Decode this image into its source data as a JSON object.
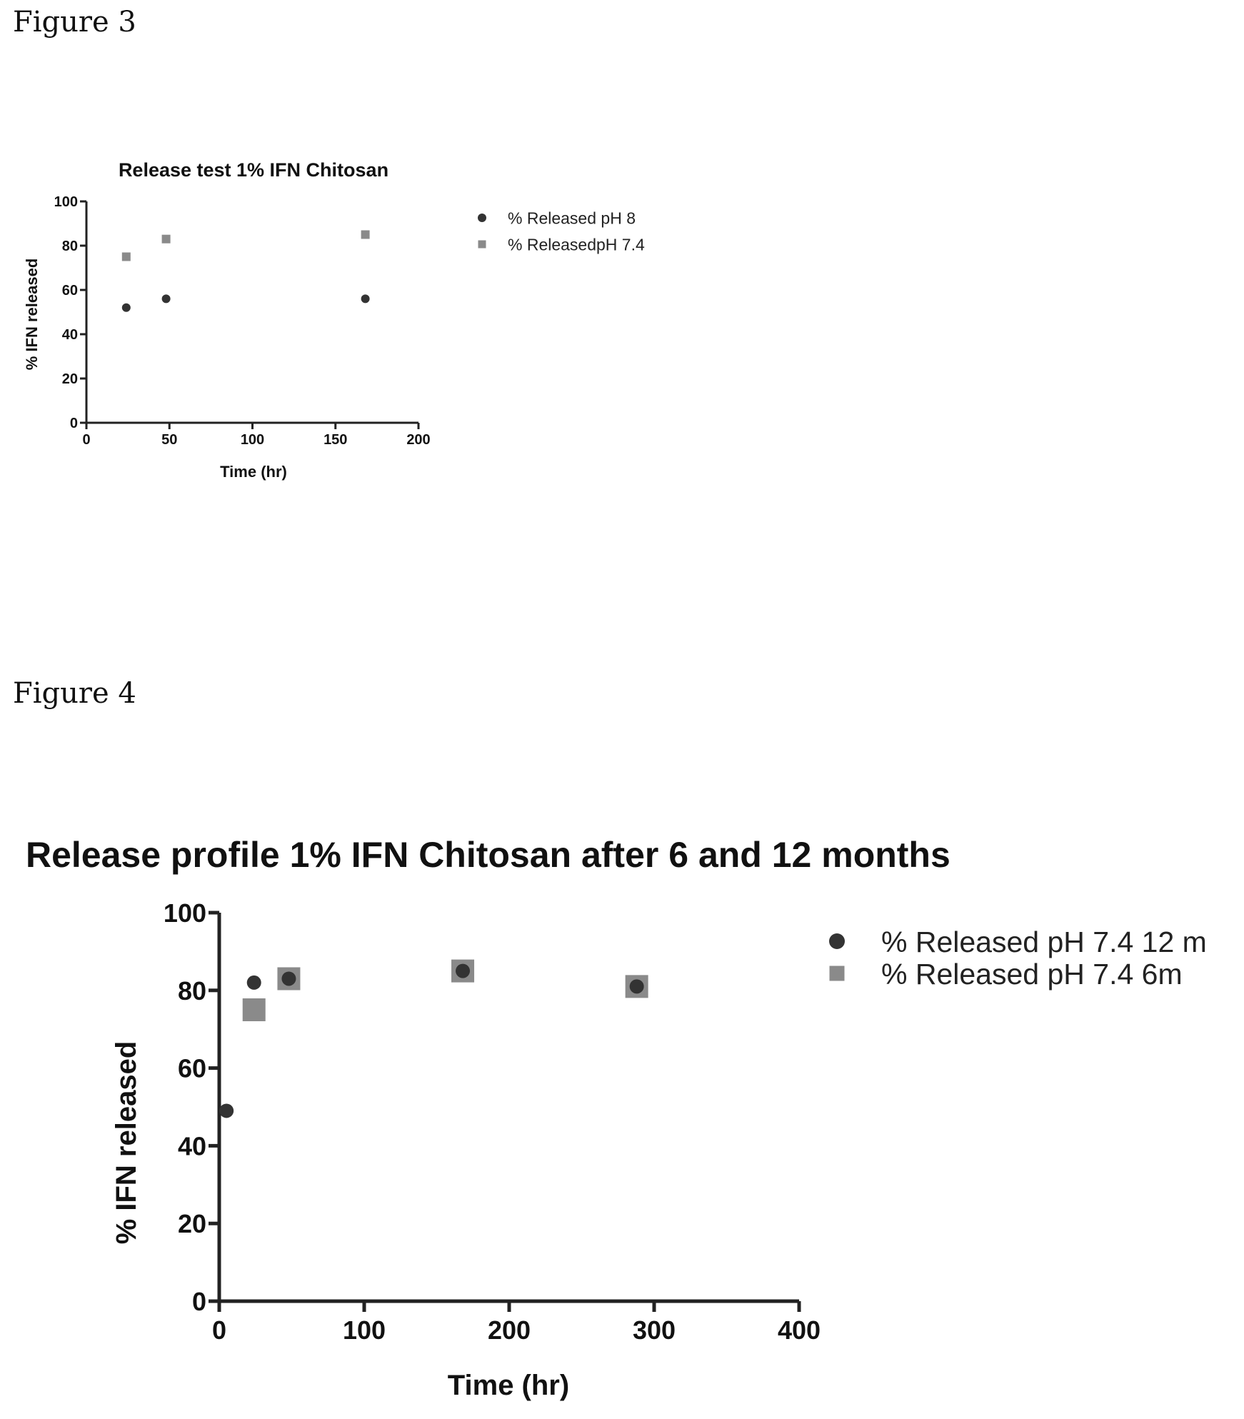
{
  "figure_labels": {
    "fig3": "Figure 3",
    "fig4": "Figure 4"
  },
  "chart_data": [
    {
      "type": "scatter",
      "title": "Release test 1% IFN Chitosan",
      "xlabel": "Time (hr)",
      "ylabel": "% IFN released",
      "xlim": [
        0,
        200
      ],
      "ylim": [
        0,
        100
      ],
      "xticks": [
        0,
        50,
        100,
        150,
        200
      ],
      "yticks": [
        0,
        20,
        40,
        60,
        80,
        100
      ],
      "grid": false,
      "legend": "right",
      "series": [
        {
          "name": "% Released pH 8",
          "marker": "circle",
          "color": "#333333",
          "x": [
            24,
            48,
            168
          ],
          "y": [
            52,
            56,
            56
          ]
        },
        {
          "name": "% ReleasedpH 7.4",
          "marker": "square",
          "color": "#8a8a8a",
          "x": [
            24,
            48,
            168
          ],
          "y": [
            75,
            83,
            85
          ]
        }
      ]
    },
    {
      "type": "scatter",
      "title": "Release profile 1% IFN Chitosan after 6 and 12 months",
      "xlabel": "Time (hr)",
      "ylabel": "% IFN released",
      "xlim": [
        0,
        400
      ],
      "ylim": [
        0,
        100
      ],
      "xticks": [
        0,
        100,
        200,
        300,
        400
      ],
      "yticks": [
        0,
        20,
        40,
        60,
        80,
        100
      ],
      "grid": false,
      "legend": "right",
      "series": [
        {
          "name": "% Released pH 7.4 12 m",
          "marker": "circle",
          "color": "#333333",
          "x": [
            5,
            24,
            48,
            168,
            288
          ],
          "y": [
            49,
            82,
            83,
            85,
            81
          ]
        },
        {
          "name": "% Released pH 7.4 6m",
          "marker": "square",
          "color": "#8a8a8a",
          "x": [
            24,
            48,
            168,
            288
          ],
          "y": [
            75,
            83,
            85,
            81
          ]
        }
      ]
    }
  ]
}
